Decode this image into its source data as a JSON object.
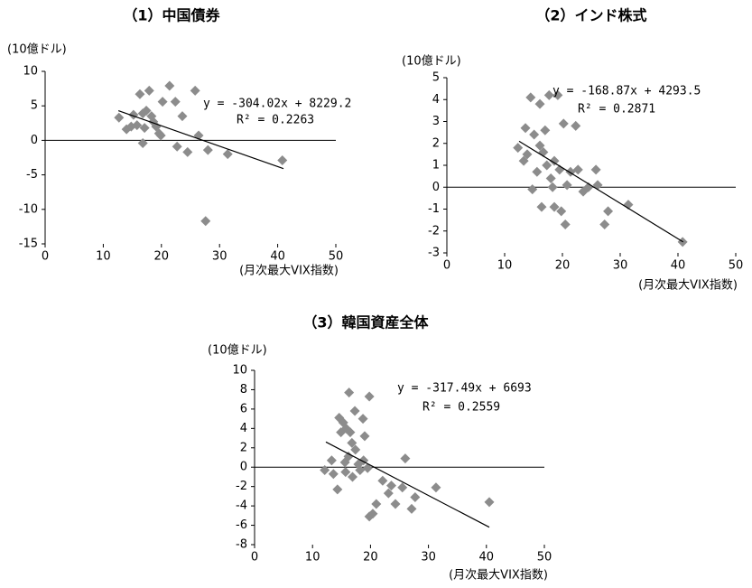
{
  "chart_data": [
    {
      "type": "scatter",
      "title": "（1）中国債券",
      "y_unit": "(10億ドル)",
      "x_label": "(月次最大VIX指数)",
      "equation": "y = -304.02x + 8229.2",
      "r_squared": "R² = 0.2263",
      "color": "#8c8c8c",
      "x": [
        12.7,
        14,
        14.8,
        15.2,
        15.8,
        16.3,
        16.8,
        16.8,
        17.1,
        17.4,
        17.9,
        18.3,
        18.6,
        19.1,
        19.6,
        19.9,
        20.2,
        21.4,
        22.4,
        22.7,
        23.6,
        24.5,
        25.8,
        26.4,
        28,
        27.6,
        31.4,
        40.8
      ],
      "y": [
        3.3,
        1.6,
        2.0,
        3.7,
        2.2,
        6.7,
        3.9,
        -0.4,
        1.8,
        4.3,
        7.2,
        3.5,
        2.7,
        2.0,
        1.0,
        0.7,
        5.6,
        7.9,
        5.6,
        -0.9,
        3.5,
        -1.7,
        7.2,
        0.7,
        -1.4,
        -11.7,
        -2.0,
        -2.9
      ],
      "trendline": {
        "x": [
          12.6,
          41
        ],
        "y": [
          4.3,
          -4.1
        ]
      },
      "xlim": [
        0,
        50
      ],
      "xticks": [
        0,
        10,
        20,
        30,
        40,
        50
      ],
      "ylim": [
        -15,
        10
      ],
      "yticks": [
        -15,
        -10,
        -5,
        0,
        5,
        10
      ]
    },
    {
      "type": "scatter",
      "title": "（2）インド株式",
      "y_unit": "(10億ドル)",
      "x_label": "(月次最大VIX指数)",
      "equation": "y = -168.87x + 4293.5",
      "r_squared": "R² = 0.2871",
      "color": "#8c8c8c",
      "x": [
        12.3,
        13.3,
        13.6,
        13.9,
        14.5,
        14.8,
        15.1,
        15.6,
        16.1,
        16.1,
        16.4,
        16.7,
        17.0,
        17.3,
        17.7,
        18,
        18.3,
        18.6,
        18.6,
        19.2,
        19.5,
        19.8,
        20.2,
        20.5,
        20.8,
        21.4,
        22.3,
        22.7,
        23.6,
        24.5,
        25.8,
        26.1,
        27.3,
        27.9,
        31.4,
        40.8
      ],
      "y": [
        1.8,
        1.2,
        2.7,
        1.5,
        4.1,
        -0.1,
        2.4,
        0.7,
        3.8,
        1.9,
        -0.9,
        1.6,
        2.6,
        1.0,
        4.2,
        0.4,
        0,
        1.2,
        -0.9,
        4.2,
        0.8,
        -1.1,
        2.9,
        -1.7,
        0.1,
        0.7,
        2.8,
        0.8,
        -0.2,
        0,
        0.8,
        0.1,
        -1.7,
        -1.1,
        -0.8,
        -2.5
      ],
      "trendline": {
        "x": [
          12.5,
          40.9
        ],
        "y": [
          2.1,
          -2.5
        ]
      },
      "xlim": [
        0,
        50
      ],
      "xticks": [
        0,
        10,
        20,
        30,
        40,
        50
      ],
      "ylim": [
        -3,
        5
      ],
      "yticks": [
        -3,
        -2,
        -1,
        0,
        1,
        2,
        3,
        4,
        5
      ]
    },
    {
      "type": "scatter",
      "title": "（3）韓国資産全体",
      "y_unit": "(10億ドル)",
      "x_label": "(月次最大VIX指数)",
      "equation": "y = -317.49x + 6693",
      "r_squared": "R² = 0.2559",
      "color": "#8c8c8c",
      "x": [
        12.1,
        13.3,
        13.6,
        14.3,
        14.6,
        14.9,
        15.3,
        15.6,
        15.7,
        15.8,
        16.2,
        16.3,
        16.5,
        16.8,
        16.9,
        17.3,
        17.4,
        17.9,
        18.2,
        18.7,
        18.8,
        19.0,
        19.5,
        19.8,
        19.8,
        20.4,
        21.0,
        22.1,
        23.1,
        23.6,
        24.3,
        25.5,
        26.0,
        27.1,
        27.7,
        31.3,
        40.5
      ],
      "y": [
        -0.3,
        0.7,
        -0.7,
        -2.3,
        5.1,
        3.6,
        4.6,
        0.5,
        -0.5,
        4.0,
        1.1,
        7.7,
        3.6,
        2.5,
        -1.0,
        5.8,
        1.8,
        0.3,
        -0.3,
        5.0,
        0.7,
        3.2,
        -0.1,
        7.3,
        -5.1,
        -4.8,
        -3.8,
        -1.4,
        -2.7,
        -1.9,
        -3.8,
        -2.1,
        0.9,
        -4.3,
        -3.1,
        -2.1,
        -3.6
      ],
      "trendline": {
        "x": [
          12.3,
          40.5
        ],
        "y": [
          2.6,
          -6.2
        ]
      },
      "xlim": [
        0,
        50
      ],
      "xticks": [
        0,
        10,
        20,
        30,
        40,
        50
      ],
      "ylim": [
        -8,
        10
      ],
      "yticks": [
        -8,
        -6,
        -4,
        -2,
        0,
        2,
        4,
        6,
        8,
        10
      ]
    }
  ]
}
